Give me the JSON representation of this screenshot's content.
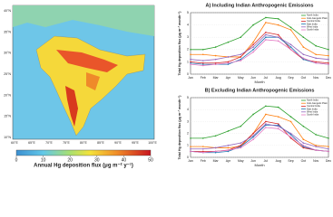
{
  "map": {
    "lat_labels": [
      "40°N",
      "35°N",
      "30°N",
      "25°N",
      "20°N",
      "15°N",
      "10°N"
    ],
    "lon_labels": [
      "60°E",
      "65°E",
      "70°E",
      "75°E",
      "80°E",
      "85°E",
      "90°E",
      "95°E",
      "100°E"
    ],
    "colorbar_label": "Annual Hg deposition flux (μg m⁻² y⁻¹)",
    "colorbar_lim": [
      0,
      50
    ],
    "colorbar_ticks": [
      0,
      10,
      20,
      30,
      40,
      50
    ]
  },
  "chart_data": [
    {
      "type": "line",
      "title": "A) Including Indian Anthropogenic Emissions",
      "x_label": "Month",
      "y_label": "Total Hg deposition flux (μg m⁻² month⁻¹)",
      "categories": [
        "Jan",
        "Feb",
        "Mar",
        "Apr",
        "May",
        "Jun",
        "Jul",
        "Aug",
        "Sep",
        "Oct",
        "Nov",
        "Dec"
      ],
      "ylim": [
        0,
        5
      ],
      "yticks": [
        0,
        1,
        2,
        3,
        4,
        5
      ],
      "series": [
        {
          "name": "North India",
          "color": "#2ca02c",
          "values": [
            2.0,
            2.0,
            2.2,
            2.6,
            3.0,
            4.0,
            4.6,
            4.5,
            3.8,
            3.0,
            2.3,
            2.0
          ]
        },
        {
          "name": "Indo-Gangetic Plain",
          "color": "#ff7f0e",
          "values": [
            1.6,
            1.6,
            1.5,
            1.4,
            1.4,
            2.6,
            4.2,
            4.0,
            3.6,
            2.2,
            1.6,
            1.5
          ]
        },
        {
          "name": "Central India",
          "color": "#d62728",
          "values": [
            1.0,
            0.9,
            0.9,
            1.0,
            1.4,
            2.4,
            3.4,
            3.2,
            2.0,
            1.2,
            1.0,
            0.9
          ]
        },
        {
          "name": "East India",
          "color": "#1f77b4",
          "values": [
            0.9,
            0.8,
            0.8,
            0.8,
            1.2,
            2.0,
            3.0,
            3.0,
            2.2,
            1.2,
            0.9,
            0.8
          ]
        },
        {
          "name": "West India",
          "color": "#9467bd",
          "values": [
            1.2,
            1.1,
            1.2,
            1.4,
            1.6,
            2.2,
            3.2,
            3.0,
            2.4,
            1.6,
            1.3,
            1.2
          ]
        },
        {
          "name": "South India",
          "color": "#e377c2",
          "values": [
            0.8,
            0.7,
            0.8,
            0.9,
            1.1,
            1.8,
            2.8,
            2.7,
            2.0,
            1.3,
            0.9,
            0.8
          ]
        }
      ]
    },
    {
      "type": "line",
      "title": "B) Excluding Indian Anthropogenic Emissions",
      "x_label": "Month",
      "y_label": "Total Hg deposition flux (μg m⁻² month⁻¹)",
      "categories": [
        "Jan",
        "Feb",
        "Mar",
        "Apr",
        "May",
        "Jun",
        "Jul",
        "Aug",
        "Sep",
        "Oct",
        "Nov",
        "Dec"
      ],
      "ylim": [
        0,
        5
      ],
      "yticks": [
        0,
        1,
        2,
        3,
        4,
        5
      ],
      "series": [
        {
          "name": "North India",
          "color": "#2ca02c",
          "values": [
            1.6,
            1.6,
            1.8,
            2.2,
            2.6,
            3.6,
            4.3,
            4.2,
            3.4,
            2.6,
            1.9,
            1.6
          ]
        },
        {
          "name": "Indo-Gangetic Plain",
          "color": "#ff7f0e",
          "values": [
            0.9,
            0.9,
            0.8,
            0.8,
            0.9,
            2.0,
            3.6,
            3.4,
            3.0,
            1.5,
            1.0,
            0.9
          ]
        },
        {
          "name": "Central India",
          "color": "#d62728",
          "values": [
            0.5,
            0.5,
            0.5,
            0.6,
            1.0,
            2.0,
            3.0,
            2.8,
            1.6,
            0.8,
            0.6,
            0.5
          ]
        },
        {
          "name": "East India",
          "color": "#1f77b4",
          "values": [
            0.5,
            0.4,
            0.4,
            0.5,
            0.9,
            1.7,
            2.7,
            2.7,
            1.9,
            0.9,
            0.6,
            0.5
          ]
        },
        {
          "name": "West India",
          "color": "#9467bd",
          "values": [
            0.7,
            0.7,
            0.8,
            1.0,
            1.2,
            1.8,
            2.8,
            2.6,
            2.0,
            1.2,
            0.9,
            0.7
          ]
        },
        {
          "name": "South India",
          "color": "#e377c2",
          "values": [
            0.5,
            0.4,
            0.5,
            0.6,
            0.8,
            1.5,
            2.5,
            2.4,
            1.7,
            1.0,
            0.6,
            0.5
          ]
        }
      ]
    }
  ]
}
